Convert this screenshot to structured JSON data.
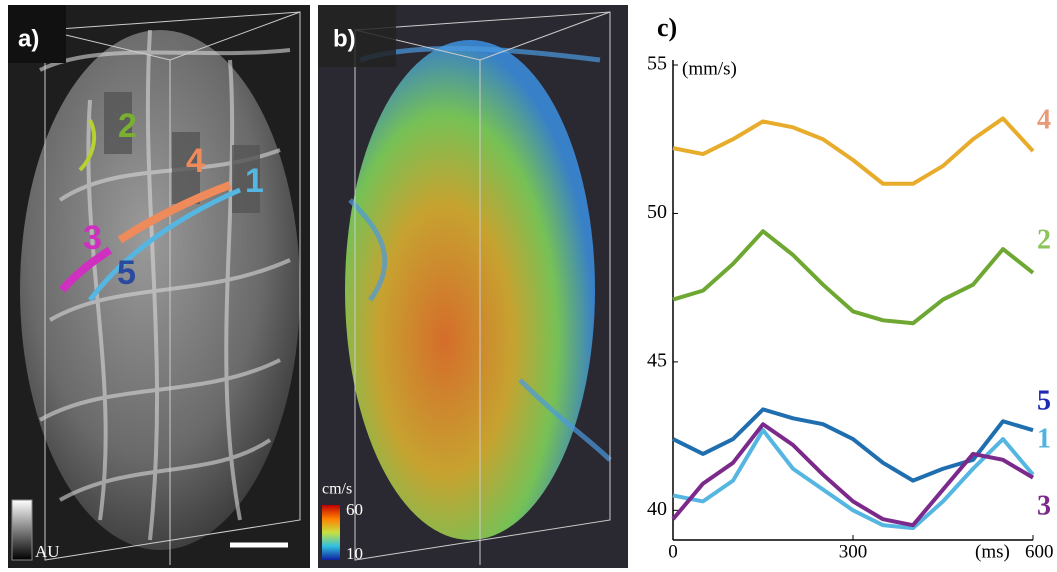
{
  "panel_a": {
    "label": "a)",
    "vessel_labels": [
      "1",
      "2",
      "3",
      "4",
      "5"
    ],
    "colorbar_label": "AU"
  },
  "panel_b": {
    "label": "b)",
    "colorbar_label": "cm/s",
    "colorbar_ticks": [
      60,
      10
    ]
  },
  "chart_data": {
    "type": "line",
    "label": "c)",
    "y_label": "(mm/s)",
    "x_label": "(ms)",
    "x": [
      0,
      50,
      100,
      150,
      200,
      250,
      300,
      350,
      400,
      450,
      500,
      550,
      600
    ],
    "xlim": [
      0,
      600
    ],
    "xticks": [
      0,
      300,
      600
    ],
    "ylim": [
      39,
      55
    ],
    "yticks": [
      40,
      45,
      50,
      55
    ],
    "grid": false,
    "series": [
      {
        "name": "4",
        "color": "#e8ac2c",
        "label_color": "#e99a76",
        "values": [
          52.2,
          52.0,
          52.5,
          53.1,
          52.9,
          52.5,
          51.8,
          51.0,
          51.0,
          51.6,
          52.5,
          53.2,
          52.1
        ]
      },
      {
        "name": "2",
        "color": "#6ea833",
        "label_color": "#8cc45a",
        "values": [
          47.1,
          47.4,
          48.3,
          49.4,
          48.6,
          47.6,
          46.7,
          46.4,
          46.3,
          47.1,
          47.6,
          48.8,
          48.0
        ]
      },
      {
        "name": "5",
        "color": "#1f6fb0",
        "label_color": "#1f2bb5",
        "values": [
          42.4,
          41.9,
          42.4,
          43.4,
          43.1,
          42.9,
          42.4,
          41.6,
          41.0,
          41.4,
          41.7,
          43.0,
          42.7
        ]
      },
      {
        "name": "1",
        "color": "#55b6e2",
        "label_color": "#4fb3e0",
        "values": [
          40.5,
          40.3,
          41.0,
          42.7,
          41.4,
          40.7,
          40.0,
          39.5,
          39.4,
          40.3,
          41.4,
          42.4,
          41.2
        ]
      },
      {
        "name": "3",
        "color": "#7b2a8c",
        "label_color": "#7b2a8c",
        "values": [
          39.7,
          40.9,
          41.6,
          42.9,
          42.2,
          41.2,
          40.3,
          39.7,
          39.5,
          40.7,
          41.9,
          41.7,
          41.1
        ]
      }
    ]
  }
}
